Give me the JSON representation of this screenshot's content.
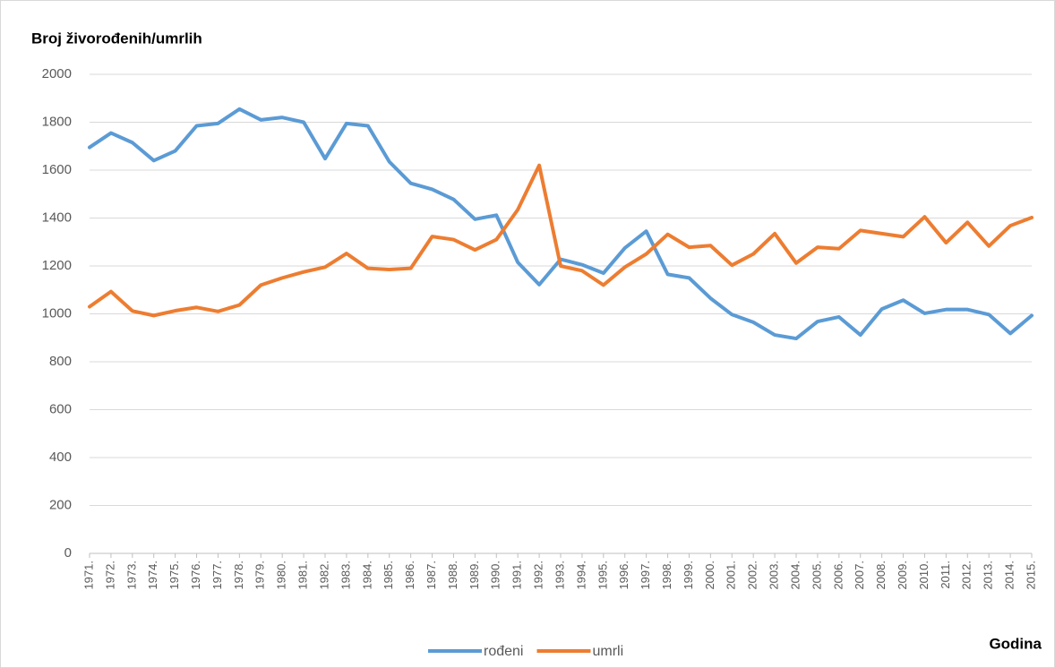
{
  "chart_data": {
    "type": "line",
    "title": "Broj živorođenih/umrlih",
    "x_label": "Godina",
    "categories": [
      "1971.",
      "1972.",
      "1973.",
      "1974.",
      "1975.",
      "1976.",
      "1977.",
      "1978.",
      "1979.",
      "1980.",
      "1981.",
      "1982.",
      "1983.",
      "1984.",
      "1985.",
      "1986.",
      "1987.",
      "1988.",
      "1989.",
      "1990.",
      "1991.",
      "1992.",
      "1993.",
      "1994.",
      "1995.",
      "1996.",
      "1997.",
      "1998.",
      "1999.",
      "2000.",
      "2001.",
      "2002.",
      "2003.",
      "2004.",
      "2005.",
      "2006.",
      "2007.",
      "2008.",
      "2009.",
      "2010.",
      "2011.",
      "2012.",
      "2013.",
      "2014.",
      "2015."
    ],
    "series": [
      {
        "name": "rođeni",
        "color": "#5b9bd5",
        "values": [
          1695,
          1755,
          1715,
          1640,
          1680,
          1785,
          1795,
          1855,
          1810,
          1820,
          1800,
          1648,
          1795,
          1785,
          1635,
          1545,
          1520,
          1478,
          1395,
          1412,
          1215,
          1122,
          1228,
          1205,
          1170,
          1275,
          1345,
          1165,
          1150,
          1065,
          997,
          965,
          912,
          897,
          968,
          987,
          912,
          1020,
          1057,
          1002,
          1018,
          1018,
          997,
          918,
          993
        ]
      },
      {
        "name": "umrli",
        "color": "#ed7d31",
        "values": [
          1030,
          1093,
          1012,
          993,
          1013,
          1027,
          1010,
          1037,
          1120,
          1150,
          1175,
          1195,
          1252,
          1190,
          1185,
          1190,
          1323,
          1310,
          1267,
          1310,
          1435,
          1620,
          1200,
          1180,
          1120,
          1195,
          1250,
          1332,
          1278,
          1285,
          1203,
          1250,
          1335,
          1212,
          1278,
          1272,
          1348,
          1335,
          1322,
          1405,
          1297,
          1382,
          1283,
          1368,
          1402
        ]
      }
    ],
    "ylim": [
      0,
      2000
    ],
    "yticks": [
      0,
      200,
      400,
      600,
      800,
      1000,
      1200,
      1400,
      1600,
      1800,
      2000
    ],
    "grid": true,
    "legend": "bottom"
  }
}
